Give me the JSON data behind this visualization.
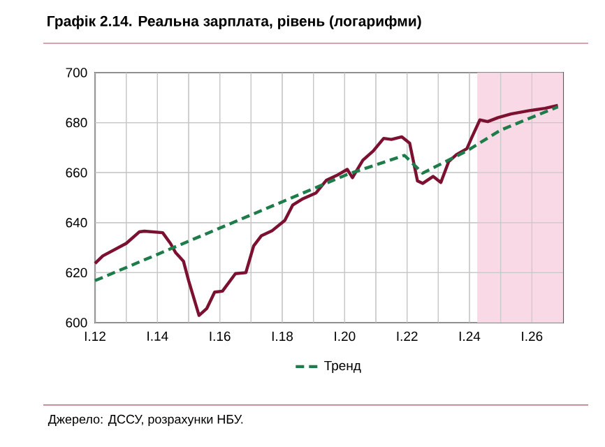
{
  "chart_data": {
    "type": "line",
    "title": "Графік 2.14. Реальна зарплата, рівень (логарифми)",
    "annotations": [
      "Джерело: ДССУ, розрахунки НБУ."
    ],
    "xlim": [
      "2012-01",
      "2027-01"
    ],
    "ylim": [
      600,
      700
    ],
    "xticks": [
      {
        "value": "2012-01",
        "label": "I.12"
      },
      {
        "value": "2013-01",
        "label": null
      },
      {
        "value": "2014-01",
        "label": "I.14"
      },
      {
        "value": "2015-01",
        "label": null
      },
      {
        "value": "2016-01",
        "label": "I.16"
      },
      {
        "value": "2017-01",
        "label": null
      },
      {
        "value": "2018-01",
        "label": "I.18"
      },
      {
        "value": "2019-01",
        "label": null
      },
      {
        "value": "2020-01",
        "label": "I.20"
      },
      {
        "value": "2021-01",
        "label": null
      },
      {
        "value": "2022-01",
        "label": "I.22"
      },
      {
        "value": "2023-01",
        "label": null
      },
      {
        "value": "2024-01",
        "label": "I.24"
      },
      {
        "value": "2025-01",
        "label": null
      },
      {
        "value": "2026-01",
        "label": "I.26"
      }
    ],
    "yticks": [
      600,
      620,
      640,
      660,
      680,
      700
    ],
    "grid": true,
    "legend": "bottom",
    "bands": [
      {
        "axis": "x",
        "from": "2024-04",
        "to": "2027-01",
        "color": "#f9d9e6"
      }
    ],
    "series": [
      {
        "color": "#7b1030",
        "line_style": "solid",
        "x": [
          "2012-01",
          "2012-04",
          "2013-01",
          "2013-06",
          "2013-08",
          "2014-03",
          "2014-06",
          "2014-08",
          "2014-11",
          "2015-01",
          "2015-05",
          "2015-08",
          "2015-11",
          "2016-02",
          "2016-07",
          "2016-11",
          "2017-02",
          "2017-05",
          "2017-09",
          "2018-02",
          "2018-05",
          "2018-09",
          "2019-02",
          "2019-06",
          "2019-10",
          "2020-02",
          "2020-04",
          "2020-08",
          "2020-12",
          "2021-04",
          "2021-07",
          "2021-11",
          "2022-02",
          "2022-05",
          "2022-07",
          "2022-11",
          "2023-02",
          "2023-05",
          "2023-08",
          "2023-12",
          "2024-02",
          "2024-05",
          "2024-08",
          "2024-12",
          "2025-05",
          "2025-12",
          "2026-06",
          "2026-11"
        ],
        "values": [
          623.7,
          626.7,
          631.7,
          636.3,
          636.6,
          636,
          631.7,
          628,
          624.6,
          616.8,
          602.9,
          605.7,
          612.2,
          612.6,
          619.6,
          620,
          630.7,
          634.8,
          636.7,
          640.9,
          647,
          649.6,
          651.9,
          657,
          658.9,
          661.3,
          658,
          665,
          668.7,
          673.7,
          673.3,
          674.3,
          671.8,
          656.7,
          655.7,
          658.5,
          656.1,
          664.4,
          667.2,
          669.6,
          674.3,
          681.1,
          680.4,
          682,
          683.5,
          684.8,
          685.7,
          686.9
        ]
      },
      {
        "name": "Тренд",
        "color": "#1e7b4a",
        "line_style": "dashed",
        "x": [
          "2012-01",
          "2020-02",
          "2021-12",
          "2022-07",
          "2023-12",
          "2025-01",
          "2025-12",
          "2026-11"
        ],
        "values": [
          616.8,
          659.3,
          666.9,
          659.8,
          668.7,
          677,
          681.7,
          686.3
        ]
      }
    ]
  }
}
